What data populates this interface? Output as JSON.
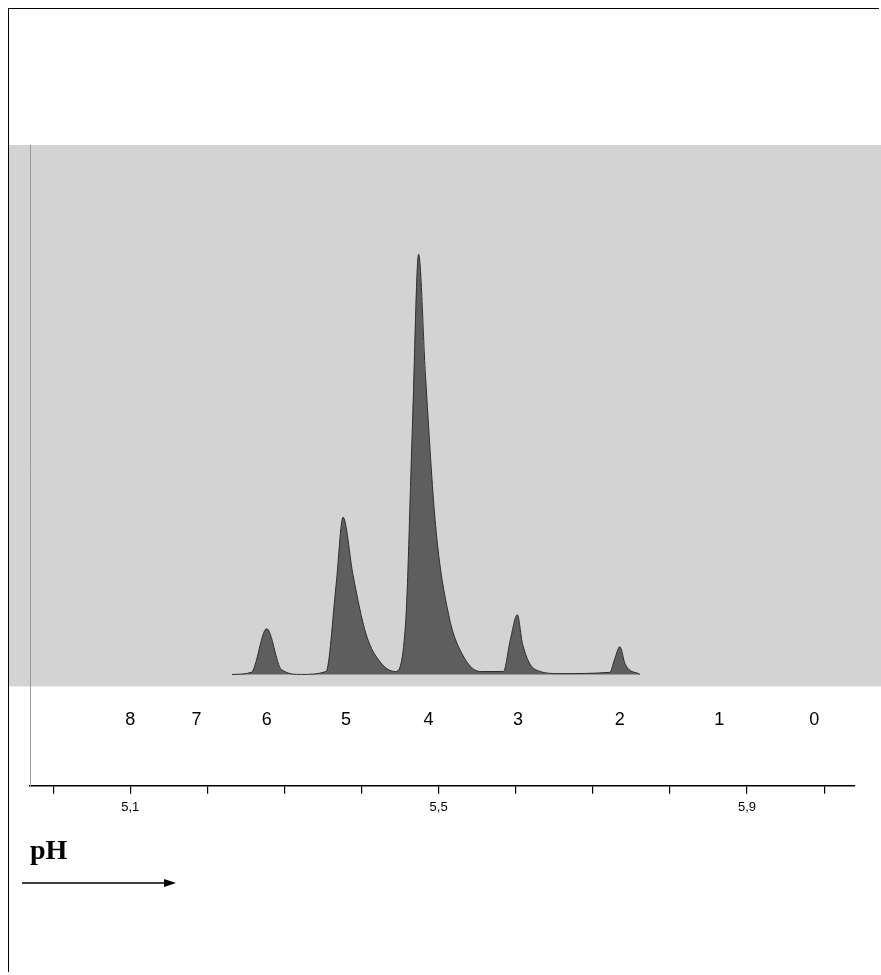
{
  "chart_data": {
    "type": "area",
    "x_label": "pH",
    "xlim": [
      4.97,
      6.04
    ],
    "xticks": [
      {
        "value": 5.0,
        "label": null
      },
      {
        "value": 5.1,
        "label": "5,1"
      },
      {
        "value": 5.2,
        "label": null
      },
      {
        "value": 5.3,
        "label": null
      },
      {
        "value": 5.4,
        "label": null
      },
      {
        "value": 5.5,
        "label": "5,5"
      },
      {
        "value": 5.6,
        "label": null
      },
      {
        "value": 5.7,
        "label": null
      },
      {
        "value": 5.8,
        "label": null
      },
      {
        "value": 5.9,
        "label": "5,9"
      },
      {
        "value": 6.0,
        "label": null
      }
    ],
    "ylim": [
      -0.265,
      1.26
    ],
    "tick_labels": "x",
    "grid": false,
    "color": "#5e5e5e",
    "x": [
      5.232,
      5.257,
      5.277,
      5.296,
      5.322,
      5.354,
      5.367,
      5.376,
      5.389,
      5.406,
      5.425,
      5.444,
      5.457,
      5.466,
      5.474,
      5.483,
      5.496,
      5.513,
      5.531,
      5.554,
      5.584,
      5.593,
      5.602,
      5.609,
      5.625,
      5.657,
      5.722,
      5.728,
      5.735,
      5.742,
      5.761
    ],
    "values": [
      0,
      0.005,
      0.109,
      0.012,
      0,
      0.007,
      0.213,
      0.374,
      0.236,
      0.095,
      0.028,
      0.007,
      0.118,
      0.591,
      1.0,
      0.709,
      0.355,
      0.142,
      0.047,
      0.007,
      0.007,
      0.083,
      0.142,
      0.071,
      0.012,
      0.002,
      0.005,
      0.035,
      0.066,
      0.024,
      0
    ],
    "annotations": [
      {
        "text": "8",
        "x": 5.1
      },
      {
        "text": "7",
        "x": 5.186
      },
      {
        "text": "6",
        "x": 5.277
      },
      {
        "text": "5",
        "x": 5.38
      },
      {
        "text": "4",
        "x": 5.487
      },
      {
        "text": "3",
        "x": 5.603
      },
      {
        "text": "2",
        "x": 5.735
      },
      {
        "text": "1",
        "x": 5.864
      },
      {
        "text": "0",
        "x": 5.987
      }
    ]
  }
}
